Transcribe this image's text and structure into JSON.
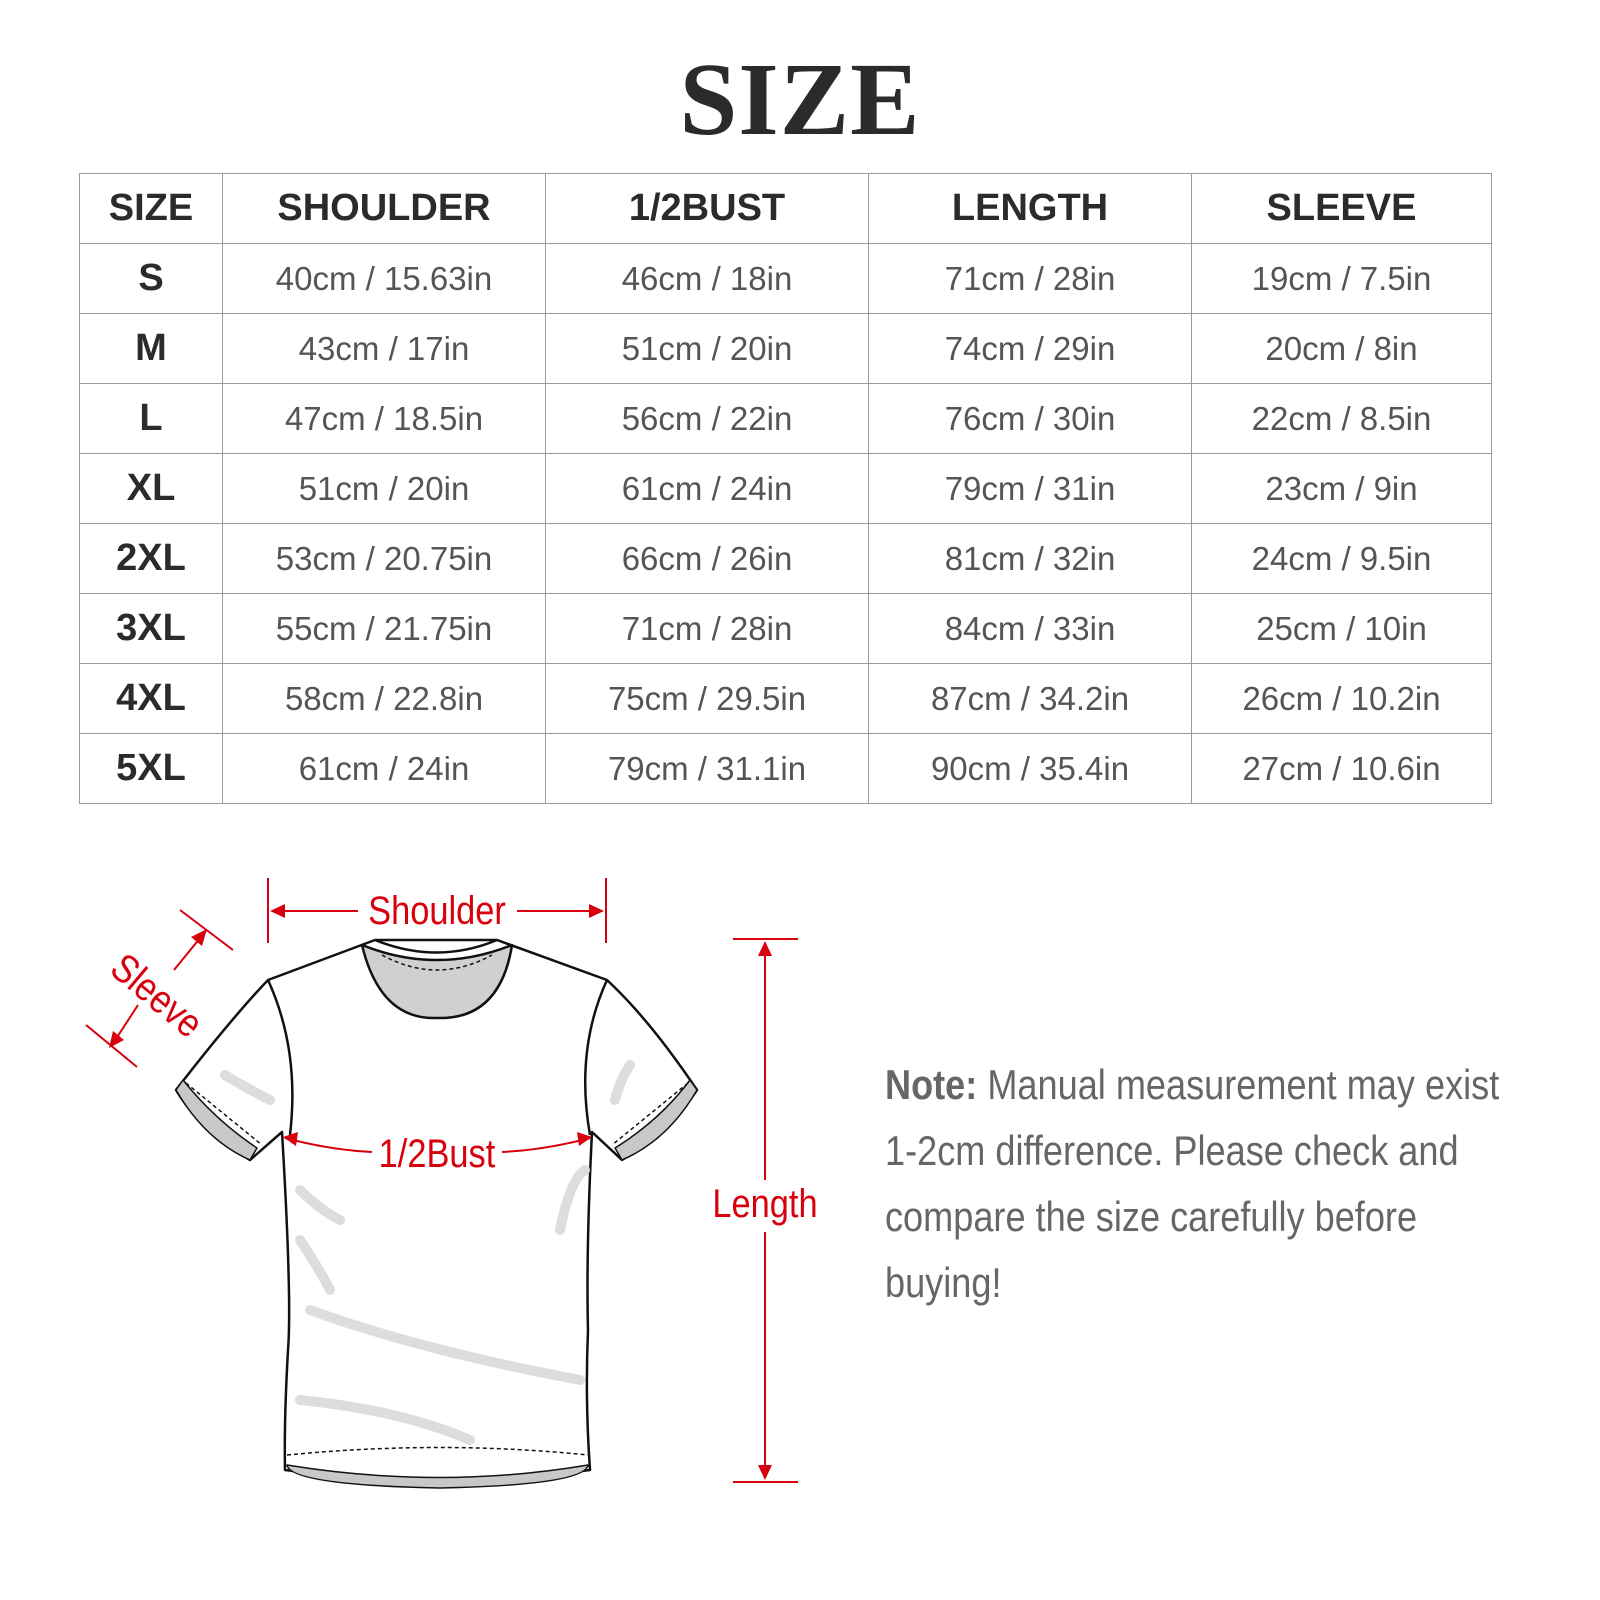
{
  "title": "SIZE",
  "table": {
    "headers": [
      "SIZE",
      "SHOULDER",
      "1/2BUST",
      "LENGTH",
      "SLEEVE"
    ],
    "rows": [
      [
        "S",
        "40cm / 15.63in",
        "46cm / 18in",
        "71cm / 28in",
        "19cm / 7.5in"
      ],
      [
        "M",
        "43cm / 17in",
        "51cm / 20in",
        "74cm / 29in",
        "20cm / 8in"
      ],
      [
        "L",
        "47cm / 18.5in",
        "56cm / 22in",
        "76cm / 30in",
        "22cm / 8.5in"
      ],
      [
        "XL",
        "51cm / 20in",
        "61cm / 24in",
        "79cm / 31in",
        "23cm / 9in"
      ],
      [
        "2XL",
        "53cm / 20.75in",
        "66cm / 26in",
        "81cm / 32in",
        "24cm / 9.5in"
      ],
      [
        "3XL",
        "55cm / 21.75in",
        "71cm / 28in",
        "84cm / 33in",
        "25cm / 10in"
      ],
      [
        "4XL",
        "58cm / 22.8in",
        "75cm / 29.5in",
        "87cm / 34.2in",
        "26cm / 10.2in"
      ],
      [
        "5XL",
        "61cm / 24in",
        "79cm / 31.1in",
        "90cm / 35.4in",
        "27cm / 10.6in"
      ]
    ]
  },
  "diagram": {
    "labels": {
      "shoulder": "Shoulder",
      "sleeve": "Sleeve",
      "bust": "1/2Bust",
      "length": "Length"
    },
    "accent_color": "#d9000d"
  },
  "note": {
    "label": "Note:",
    "text": " Manual measurement may exist 1-2cm difference. Please check and compare the size carefully before buying!"
  }
}
